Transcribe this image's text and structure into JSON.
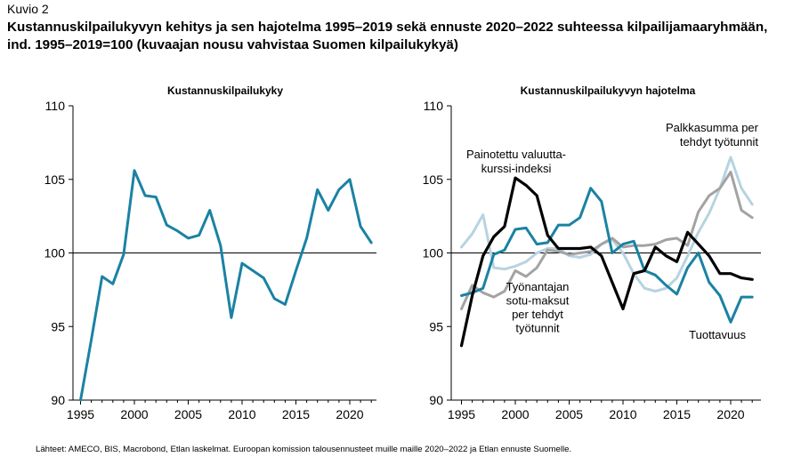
{
  "figure_label": "Kuvio 2",
  "figure_title": "Kustannuskilpailukyvyn kehitys ja sen hajotelma 1995–2019 sekä ennuste 2020–2022 suhteessa kilpailijamaaryhmään, ind. 1995–2019=100 (kuvaajan nousu vahvistaa Suomen kilpailukykyä)",
  "source_note": "Lähteet: AMECO, BIS, Macrobond, Etlan laskelmat. Euroopan komission talousennusteet muille maille 2020–2022 ja Etlan ennuste Suomelle.",
  "colors": {
    "teal": "#1a82a3",
    "black": "#000000",
    "light_blue": "#b7d3e1",
    "gray": "#a3a3a3"
  },
  "chart_data": [
    {
      "type": "line",
      "title": "Kustannuskilpailukyky",
      "xlim": [
        1995,
        2022
      ],
      "ylim": [
        90,
        110
      ],
      "x_ticks": [
        "1995",
        "2000",
        "2005",
        "2010",
        "2015",
        "2020"
      ],
      "y_ticks": [
        "110",
        "105",
        "100",
        "95",
        "90"
      ],
      "reference_line": 100,
      "x": [
        1995,
        1996,
        1997,
        1998,
        1999,
        2000,
        2001,
        2002,
        2003,
        2004,
        2005,
        2006,
        2007,
        2008,
        2009,
        2010,
        2011,
        2012,
        2013,
        2014,
        2015,
        2016,
        2017,
        2018,
        2019,
        2020,
        2021,
        2022
      ],
      "series": [
        {
          "color": "#1a82a3",
          "values": [
            90.0,
            94.1,
            98.4,
            97.9,
            99.9,
            105.6,
            103.9,
            103.8,
            101.9,
            101.5,
            101.0,
            101.2,
            102.9,
            100.5,
            95.6,
            99.3,
            98.8,
            98.3,
            96.9,
            96.5,
            98.8,
            101.0,
            104.3,
            102.9,
            104.3,
            105.0,
            101.8,
            100.7
          ]
        }
      ]
    },
    {
      "type": "line",
      "title": "Kustannuskilpailukyvyn hajotelma",
      "xlim": [
        1995,
        2022
      ],
      "ylim": [
        90,
        110
      ],
      "x_ticks": [
        "1995",
        "2000",
        "2005",
        "2010",
        "2015",
        "2020"
      ],
      "y_ticks": [
        "110",
        "105",
        "100",
        "95",
        "90"
      ],
      "reference_line": 100,
      "x": [
        1995,
        1996,
        1997,
        1998,
        1999,
        2000,
        2001,
        2002,
        2003,
        2004,
        2005,
        2006,
        2007,
        2008,
        2009,
        2010,
        2011,
        2012,
        2013,
        2014,
        2015,
        2016,
        2017,
        2018,
        2019,
        2020,
        2021,
        2022
      ],
      "series": [
        {
          "color": "#b7d3e1",
          "values": [
            100.4,
            101.3,
            102.6,
            99.0,
            98.9,
            99.1,
            99.4,
            100.0,
            100.3,
            100.3,
            99.8,
            99.7,
            99.9,
            100.6,
            100.9,
            100.0,
            98.6,
            97.6,
            97.4,
            97.6,
            98.3,
            99.8,
            101.4,
            102.7,
            104.4,
            106.5,
            104.4,
            103.3
          ]
        },
        {
          "color": "#a3a3a3",
          "values": [
            96.2,
            97.8,
            97.3,
            97.0,
            97.4,
            98.8,
            98.4,
            99.0,
            100.2,
            100.1,
            99.9,
            100.0,
            100.1,
            100.6,
            101.0,
            100.4,
            100.5,
            100.5,
            100.6,
            100.9,
            101.0,
            100.5,
            102.8,
            103.9,
            104.4,
            105.5,
            102.9,
            102.4
          ]
        },
        {
          "color": "#1a82a3",
          "values": [
            97.1,
            97.3,
            97.6,
            99.9,
            100.2,
            101.6,
            101.7,
            100.6,
            100.7,
            101.9,
            101.9,
            102.4,
            104.4,
            103.5,
            100.0,
            100.6,
            100.8,
            98.8,
            98.5,
            97.8,
            97.2,
            99.0,
            100.0,
            98.0,
            97.1,
            95.3,
            97.0,
            97.0
          ]
        },
        {
          "color": "#000000",
          "values": [
            93.7,
            97.1,
            99.8,
            101.1,
            101.8,
            105.1,
            104.6,
            103.9,
            101.2,
            100.3,
            100.3,
            100.3,
            100.4,
            99.8,
            98.0,
            96.2,
            98.6,
            98.8,
            100.4,
            99.8,
            99.4,
            101.4,
            100.6,
            99.8,
            98.6,
            98.6,
            98.3,
            98.2
          ]
        }
      ],
      "annotations": [
        {
          "lines": [
            "Painotettu valuutta-",
            "kurssi-indeksi"
          ],
          "align": "middle"
        },
        {
          "lines": [
            "Palkkasumma per",
            "tehdyt työtunnit"
          ],
          "align": "end"
        },
        {
          "lines": [
            "Työnantajan",
            "sotu-maksut",
            "per tehdyt",
            "työtunnit"
          ],
          "align": "middle"
        },
        {
          "lines": [
            "Tuottavuus"
          ],
          "align": "end"
        }
      ]
    }
  ]
}
